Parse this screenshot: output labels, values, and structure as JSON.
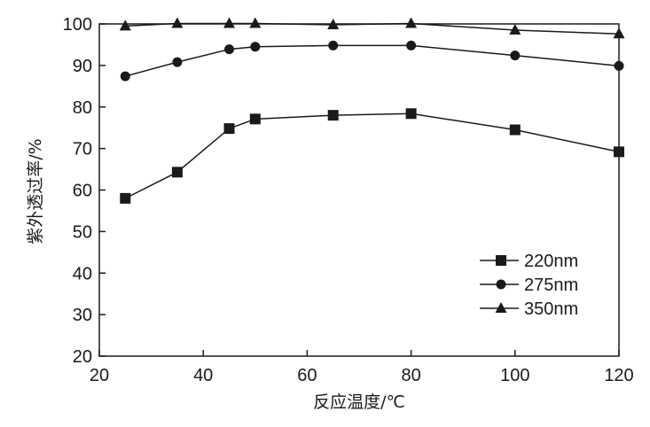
{
  "chart_data": {
    "type": "line",
    "xlabel": "反应温度/℃",
    "ylabel": "紫外透过率/%",
    "xlim": [
      20,
      120
    ],
    "ylim": [
      20,
      100
    ],
    "xticks": [
      20,
      40,
      60,
      80,
      100,
      120
    ],
    "yticks": [
      20,
      30,
      40,
      50,
      60,
      70,
      80,
      90,
      100
    ],
    "x": [
      25,
      35,
      45,
      50,
      65,
      80,
      100,
      120
    ],
    "series": [
      {
        "name": "220nm",
        "marker": "square",
        "values": [
          58,
          64.3,
          74.8,
          77.1,
          78.0,
          78.4,
          74.5,
          69.2
        ]
      },
      {
        "name": "275nm",
        "marker": "circle",
        "values": [
          87.4,
          90.8,
          93.9,
          94.5,
          94.8,
          94.8,
          92.4,
          89.9
        ]
      },
      {
        "name": "350nm",
        "marker": "triangle",
        "values": [
          99.5,
          100.1,
          100.1,
          100.1,
          99.8,
          100.1,
          98.5,
          97.6
        ]
      }
    ],
    "legend_position": "bottom-right",
    "grid": false,
    "colors": {
      "line": "#1a1a1a",
      "marker": "#1a1a1a",
      "axis": "#1a1a1a"
    }
  }
}
